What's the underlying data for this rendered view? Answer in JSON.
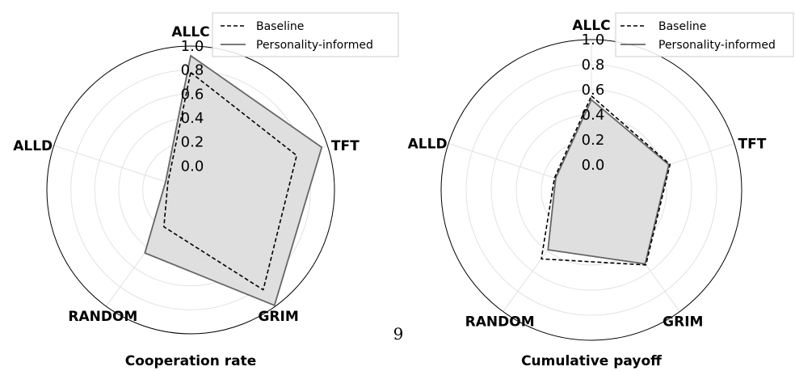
{
  "page_number": "9",
  "chart_data": [
    {
      "type": "radar",
      "title": "Cooperation rate",
      "categories": [
        "ALLC",
        "TFT",
        "GRIM",
        "RANDOM",
        "ALLD"
      ],
      "rticks": [
        "0.0",
        "0.2",
        "0.4",
        "0.6",
        "0.8",
        "1.0"
      ],
      "rlim": [
        -0.2,
        1.0
      ],
      "grid": true,
      "legend": "top-right",
      "series": [
        {
          "name": "Baseline",
          "values": [
            0.78,
            0.73,
            0.83,
            0.18,
            0.0
          ],
          "color": "#000000",
          "style": "dashed"
        },
        {
          "name": "Personality-informed",
          "values": [
            0.92,
            0.95,
            0.99,
            0.45,
            0.02
          ],
          "color": "#666666",
          "style": "solid",
          "fill": "#dddddd"
        }
      ]
    },
    {
      "type": "radar",
      "title": "Cumulative payoff",
      "categories": [
        "ALLC",
        "TFT",
        "GRIM",
        "RANDOM",
        "ALLD"
      ],
      "rticks": [
        "0.0",
        "0.2",
        "0.4",
        "0.6",
        "0.8",
        "1.0"
      ],
      "rlim": [
        -0.2,
        1.0
      ],
      "grid": true,
      "legend": "top-right",
      "series": [
        {
          "name": "Baseline",
          "values": [
            0.55,
            0.46,
            0.54,
            0.48,
            0.11
          ],
          "color": "#000000",
          "style": "dashed"
        },
        {
          "name": "Personality-informed",
          "values": [
            0.52,
            0.45,
            0.53,
            0.39,
            0.1
          ],
          "color": "#666666",
          "style": "solid",
          "fill": "#dddddd"
        }
      ]
    }
  ]
}
